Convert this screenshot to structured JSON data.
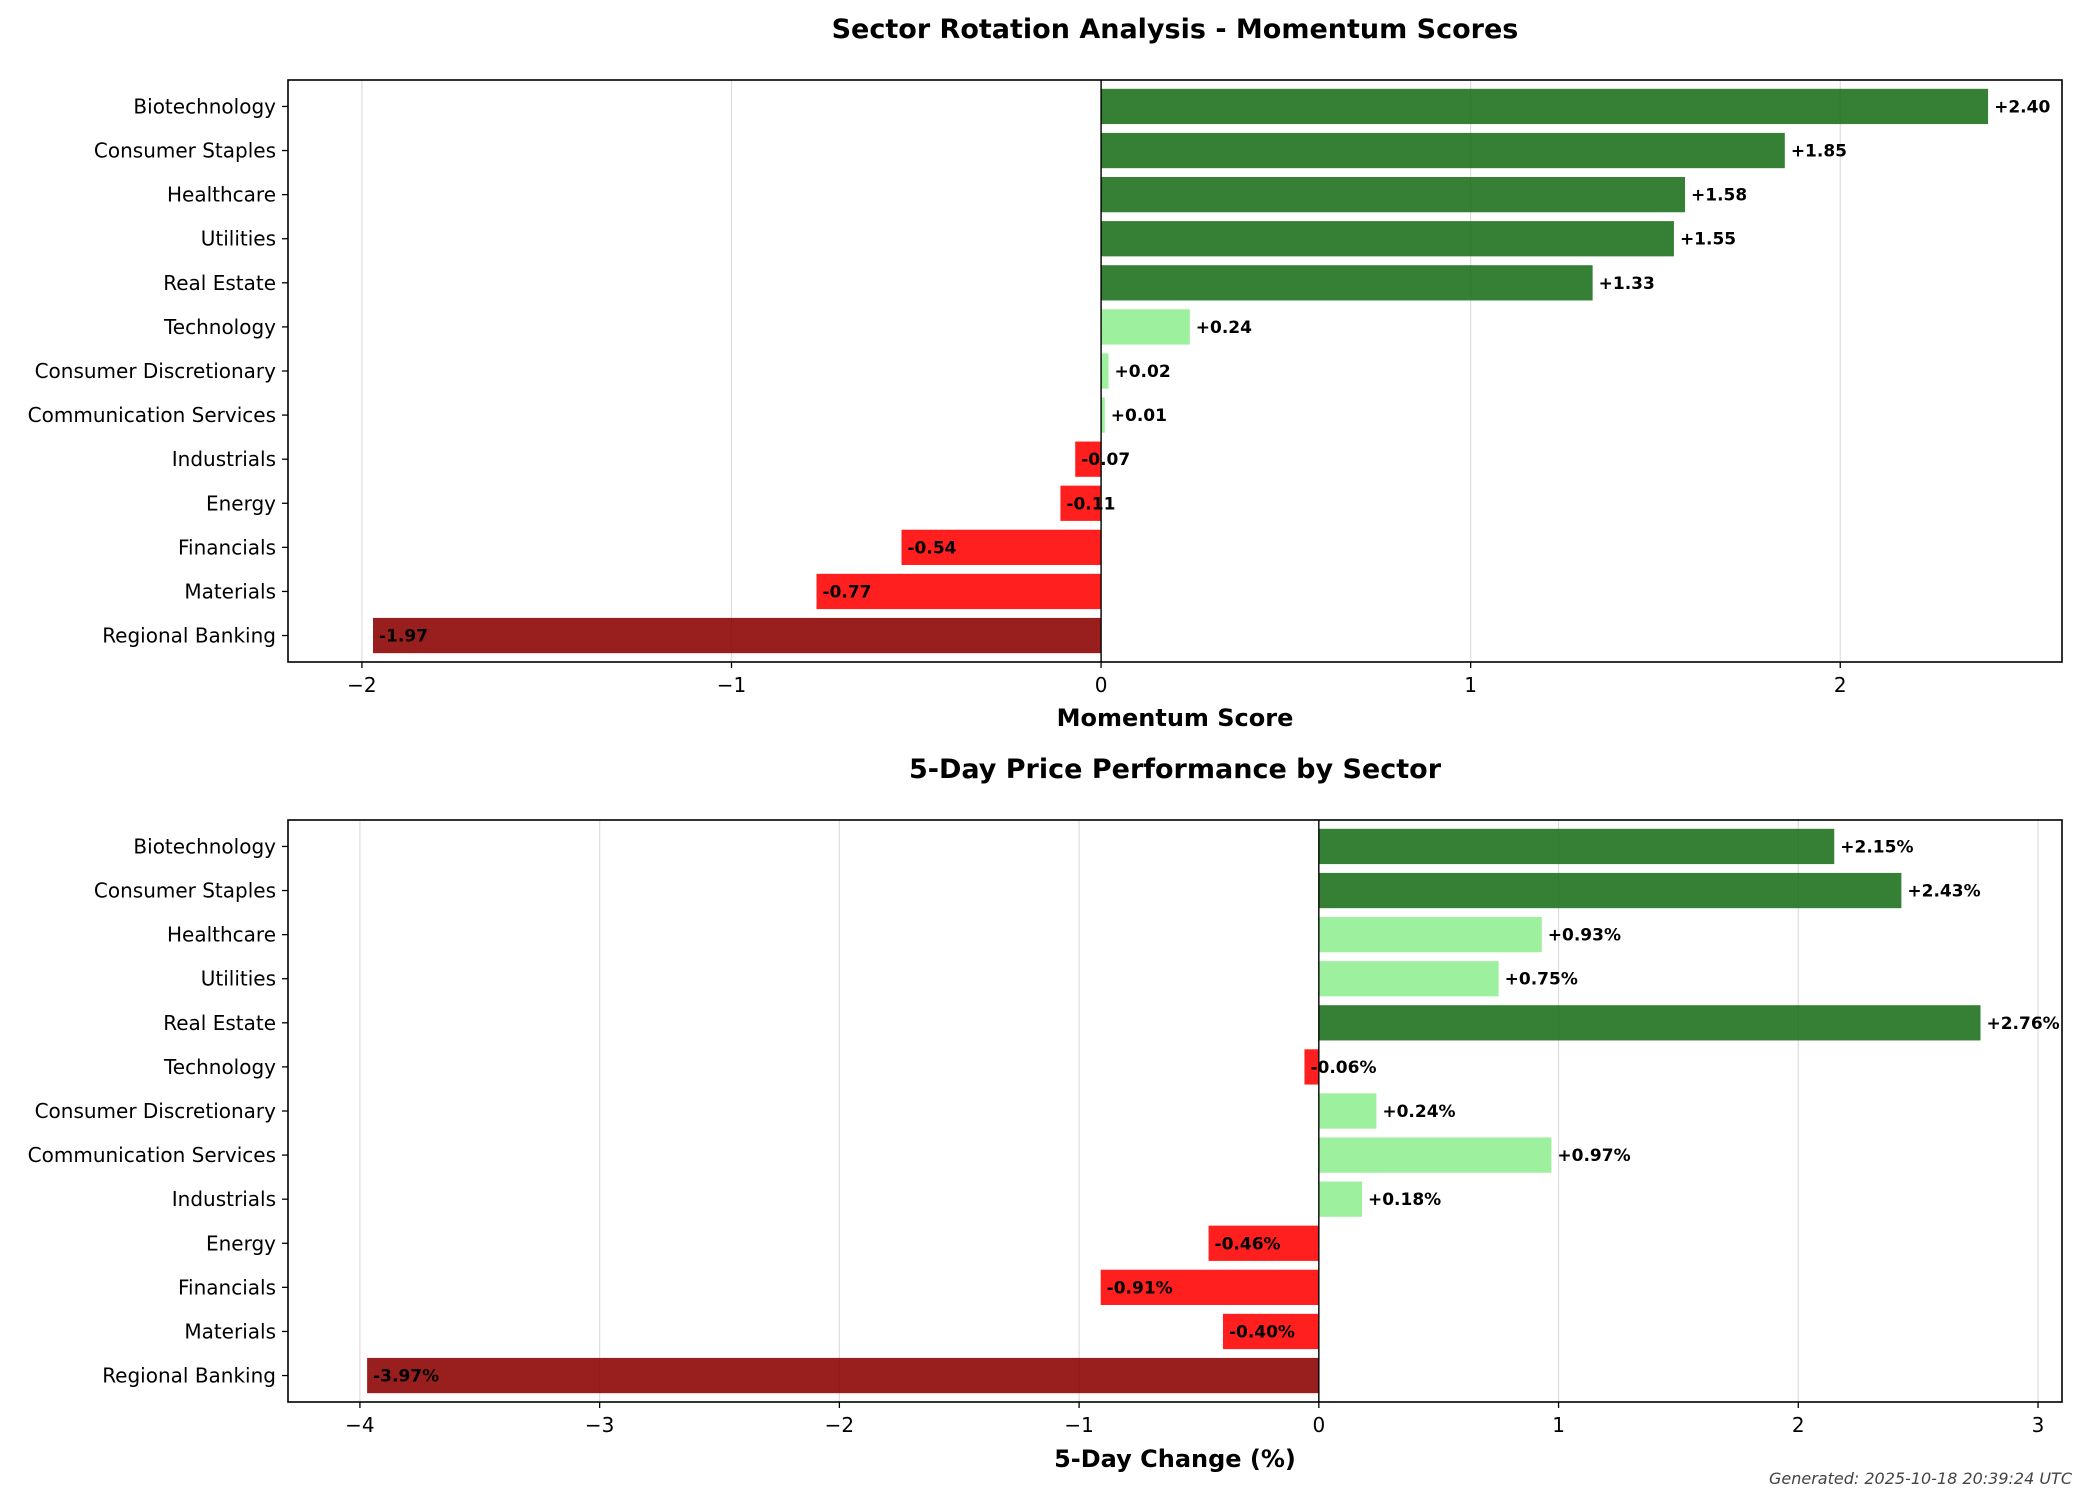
{
  "chart_data": [
    {
      "type": "bar",
      "orientation": "horizontal",
      "title": "Sector Rotation Analysis - Momentum Scores",
      "xlabel": "Momentum Score",
      "ylabel": "",
      "xlim": [
        -2.2,
        2.6
      ],
      "xticks": [
        -2,
        -1,
        0,
        1,
        2
      ],
      "xtick_labels": [
        "−2",
        "−1",
        "0",
        "1",
        "2"
      ],
      "grid": "vertical",
      "categories": [
        "Biotechnology",
        "Consumer Staples",
        "Healthcare",
        "Utilities",
        "Real Estate",
        "Technology",
        "Consumer Discretionary",
        "Communication Services",
        "Industrials",
        "Energy",
        "Financials",
        "Materials",
        "Regional Banking"
      ],
      "values": [
        2.4,
        1.85,
        1.58,
        1.55,
        1.33,
        0.24,
        0.02,
        0.01,
        -0.07,
        -0.11,
        -0.54,
        -0.77,
        -1.97
      ],
      "value_labels": [
        "+2.40",
        "+1.85",
        "+1.58",
        "+1.55",
        "+1.33",
        "+0.24",
        "+0.02",
        "+0.01",
        "-0.07",
        "-0.11",
        "-0.54",
        "-0.77",
        "-1.97"
      ],
      "bar_colors": [
        "#1a6e1a",
        "#1a6e1a",
        "#1a6e1a",
        "#1a6e1a",
        "#1a6e1a",
        "#90ee90",
        "#90ee90",
        "#90ee90",
        "#ff0000",
        "#ff0000",
        "#ff0000",
        "#ff0000",
        "#8b0000"
      ]
    },
    {
      "type": "bar",
      "orientation": "horizontal",
      "title": "5-Day Price Performance by Sector",
      "xlabel": "5-Day Change (%)",
      "ylabel": "",
      "xlim": [
        -4.3,
        3.1
      ],
      "xticks": [
        -4,
        -3,
        -2,
        -1,
        0,
        1,
        2,
        3
      ],
      "xtick_labels": [
        "−4",
        "−3",
        "−2",
        "−1",
        "0",
        "1",
        "2",
        "3"
      ],
      "grid": "vertical",
      "categories": [
        "Biotechnology",
        "Consumer Staples",
        "Healthcare",
        "Utilities",
        "Real Estate",
        "Technology",
        "Consumer Discretionary",
        "Communication Services",
        "Industrials",
        "Energy",
        "Financials",
        "Materials",
        "Regional Banking"
      ],
      "values": [
        2.15,
        2.43,
        0.93,
        0.75,
        2.76,
        -0.06,
        0.24,
        0.97,
        0.18,
        -0.46,
        -0.91,
        -0.4,
        -3.97
      ],
      "value_labels": [
        "+2.15%",
        "+2.43%",
        "+0.93%",
        "+0.75%",
        "+2.76%",
        "-0.06%",
        "+0.24%",
        "+0.97%",
        "+0.18%",
        "-0.46%",
        "-0.91%",
        "-0.40%",
        "-3.97%"
      ],
      "bar_colors": [
        "#1a6e1a",
        "#1a6e1a",
        "#90ee90",
        "#90ee90",
        "#1a6e1a",
        "#ff0000",
        "#90ee90",
        "#90ee90",
        "#90ee90",
        "#ff0000",
        "#ff0000",
        "#ff0000",
        "#8b0000"
      ]
    }
  ],
  "footer": "Generated: 2025-10-18 20:39:24 UTC"
}
